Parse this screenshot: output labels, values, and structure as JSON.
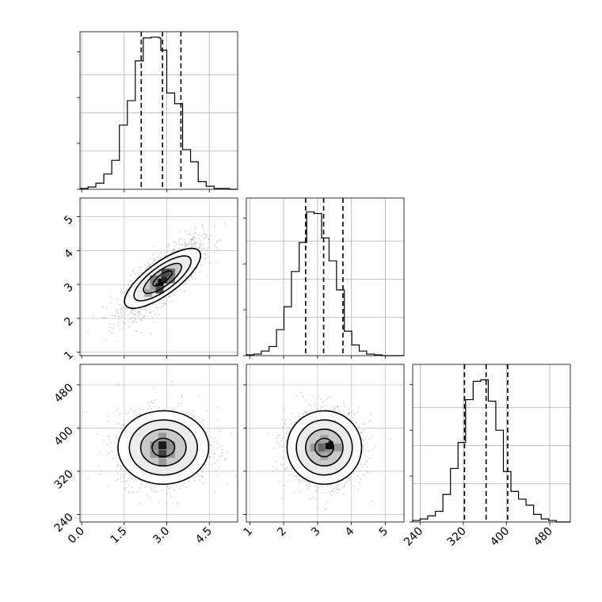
{
  "chart_data": {
    "type": "corner",
    "title": "",
    "grid": true,
    "parameter_labels": [
      "",
      "",
      ""
    ],
    "ranges": [
      [
        -0.06,
        5.5
      ],
      [
        0.9,
        5.55
      ],
      [
        226,
        518
      ]
    ],
    "ticks": [
      [
        "0.0",
        "1.5",
        "3.0",
        "4.5"
      ],
      [
        "1",
        "2",
        "3",
        "4",
        "5"
      ],
      [
        "240",
        "320",
        "400",
        "480"
      ]
    ],
    "quantiles": [
      [
        2.1,
        2.85,
        3.5
      ],
      [
        2.65,
        3.18,
        3.75
      ],
      [
        322,
        362,
        402
      ]
    ],
    "histograms": [
      {
        "param": 0,
        "edges": [
          -0.06,
          0.22,
          0.5,
          0.78,
          1.06,
          1.33,
          1.61,
          1.89,
          2.17,
          2.45,
          2.72,
          2.79,
          3.0,
          3.28,
          3.56,
          3.84,
          4.11,
          4.39,
          4.67,
          4.95,
          5.22,
          5.5
        ],
        "counts": [
          0.5,
          1.5,
          4,
          10,
          19,
          42,
          58,
          84,
          99,
          99.5,
          99,
          91,
          63,
          56,
          26,
          18,
          5,
          2,
          0.5,
          0.5,
          0
        ],
        "ymax": 100
      },
      {
        "param": 1,
        "edges": [
          0.9,
          1.12,
          1.34,
          1.57,
          1.79,
          2.01,
          2.23,
          2.46,
          2.68,
          2.9,
          3.12,
          3.34,
          3.56,
          3.79,
          4.01,
          4.23,
          4.45,
          4.68,
          4.9,
          5.12,
          5.34,
          5.55
        ],
        "counts": [
          0.5,
          1,
          3,
          6,
          17,
          32,
          55,
          74,
          94,
          93,
          77,
          62,
          43,
          16,
          7,
          3,
          1,
          0.5,
          0,
          0,
          0
        ],
        "ymax": 100
      },
      {
        "param": 2,
        "edges": [
          226,
          240,
          254,
          268,
          282,
          296,
          310,
          324,
          338,
          352,
          366,
          380,
          394,
          408,
          422,
          436,
          450,
          464,
          478,
          492,
          506,
          518
        ],
        "counts": [
          1,
          2,
          4,
          7,
          18,
          35,
          52,
          80,
          92,
          93,
          79,
          60,
          33,
          20,
          15,
          11,
          5,
          2,
          1,
          0,
          0
        ],
        "ymax": 100
      }
    ],
    "scatter_panels": [
      {
        "x_param": 0,
        "y_param": 1,
        "center": [
          2.85,
          3.18
        ],
        "sd": [
          0.7,
          0.55
        ],
        "corr": 0.78,
        "density_cells": [
          [
            2.55,
            2.95,
            0.4
          ],
          [
            2.75,
            3.05,
            0.95
          ],
          [
            2.95,
            3.15,
            0.85
          ],
          [
            2.75,
            2.85,
            0.7
          ],
          [
            3.15,
            3.35,
            0.6
          ],
          [
            2.35,
            2.75,
            0.35
          ],
          [
            3.15,
            3.15,
            0.5
          ],
          [
            2.55,
            3.15,
            0.5
          ],
          [
            2.95,
            3.35,
            0.7
          ]
        ]
      },
      {
        "x_param": 0,
        "y_param": 2,
        "center": [
          2.88,
          364
        ],
        "sd": [
          0.8,
          34
        ],
        "corr": 0.05,
        "density_cells": [
          [
            2.85,
            368,
            0.9
          ],
          [
            2.85,
            352,
            0.75
          ],
          [
            2.55,
            368,
            0.45
          ],
          [
            3.15,
            368,
            0.45
          ],
          [
            2.55,
            352,
            0.4
          ],
          [
            3.15,
            352,
            0.4
          ],
          [
            2.85,
            384,
            0.4
          ],
          [
            2.85,
            336,
            0.4
          ]
        ]
      },
      {
        "x_param": 1,
        "y_param": 2,
        "center": [
          3.2,
          364
        ],
        "sd": [
          0.55,
          34
        ],
        "corr": 0.04,
        "density_cells": [
          [
            3.35,
            368,
            0.95
          ],
          [
            3.1,
            364,
            0.6
          ],
          [
            2.9,
            364,
            0.4
          ],
          [
            3.6,
            364,
            0.4
          ],
          [
            3.2,
            380,
            0.35
          ],
          [
            3.2,
            348,
            0.35
          ]
        ]
      }
    ]
  }
}
